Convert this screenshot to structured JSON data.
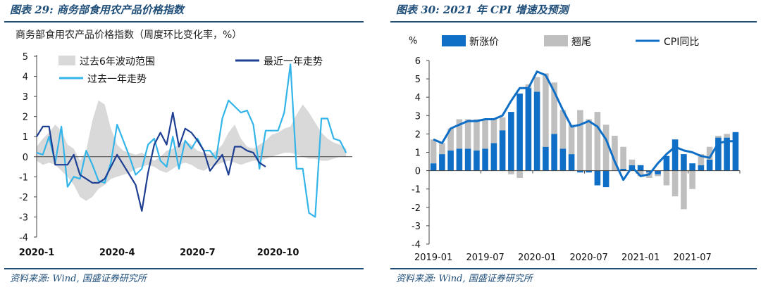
{
  "left": {
    "figure_title": "图表 29:  商务部食用农产品价格指数",
    "source": "资料来源: Wind, 国盛证券研究所",
    "chart_data": {
      "type": "line",
      "subtitle": "商务部食用农产品价格指数（周度环比变化率，%）",
      "ylim": [
        -4,
        5
      ],
      "yticks": [
        "5",
        "4",
        "3",
        "2",
        "1",
        "0",
        "-1",
        "-2",
        "-3",
        "-4"
      ],
      "xticks": [
        "2020-1",
        "2020-4",
        "2020-7",
        "2020-10"
      ],
      "x_unit": "week of year",
      "legend": [
        {
          "key": "band",
          "label": "过去6年波动范围"
        },
        {
          "key": "recent",
          "label": "最近一年走势"
        },
        {
          "key": "past",
          "label": "过去一年走势"
        }
      ],
      "colors": {
        "band": "#d9d9d9",
        "recent": "#1f3f93",
        "past": "#33b5ea"
      },
      "band": {
        "upper": [
          0.5,
          0.9,
          1.2,
          1.6,
          1.3,
          0.6,
          0.4,
          -0.2,
          0.3,
          1.8,
          2.8,
          2.6,
          1.4,
          0.6,
          0.3,
          0.2,
          0.1,
          0.2,
          0.0,
          -0.2,
          0.0,
          0.3,
          0.4,
          0.6,
          0.8,
          0.6,
          0.3,
          0.2,
          0.1,
          0.3,
          0.6,
          1.2,
          1.6,
          0.9,
          0.5,
          0.4,
          0.6,
          0.8,
          1.1,
          1.2,
          1.4,
          1.5,
          2.1,
          2.6,
          2.2,
          1.7,
          1.2,
          0.9,
          0.7,
          0.6,
          0.4
        ],
        "lower": [
          -0.2,
          -0.4,
          -0.3,
          -0.4,
          -0.7,
          -1.0,
          -1.4,
          -2.0,
          -2.2,
          -2.0,
          -1.6,
          -1.4,
          -1.1,
          -1.0,
          -0.9,
          -0.8,
          -0.6,
          -0.5,
          -0.4,
          -0.5,
          -0.7,
          -0.8,
          -0.6,
          -0.4,
          -0.3,
          -0.4,
          -0.6,
          -0.7,
          -0.5,
          -0.4,
          -0.3,
          -0.2,
          -0.3,
          -0.4,
          -0.3,
          -0.2,
          -0.2,
          -0.1,
          0.0,
          0.1,
          0.2,
          0.2,
          0.1,
          0.0,
          -0.1,
          -0.1,
          -0.2,
          -0.2,
          -0.1,
          0.0,
          0.0
        ]
      },
      "series": [
        {
          "key": "past",
          "name": "过去一年走势",
          "x": [
            1,
            2,
            3,
            4,
            5,
            6,
            7,
            8,
            9,
            10,
            11,
            12,
            13,
            14,
            15,
            16,
            17,
            18,
            19,
            20,
            21,
            22,
            23,
            24,
            25,
            26,
            27,
            28,
            29,
            30,
            31,
            32,
            33,
            34,
            35,
            36,
            37,
            38,
            39,
            40,
            41,
            42,
            43,
            44,
            45,
            46,
            47,
            48,
            49,
            50,
            51
          ],
          "values": [
            0.2,
            0.1,
            1.0,
            -0.3,
            1.5,
            -1.5,
            -1.0,
            -1.1,
            0.3,
            -0.4,
            -1.2,
            -1.3,
            -0.3,
            1.6,
            0.8,
            0.0,
            -0.9,
            -0.6,
            0.6,
            0.9,
            -0.2,
            -0.5,
            1.0,
            -0.6,
            0.8,
            0.4,
            0.9,
            0.3,
            0.3,
            -0.1,
            1.9,
            2.8,
            2.5,
            2.2,
            2.3,
            1.6,
            -0.6,
            1.3,
            1.3,
            1.3,
            2.2,
            4.6,
            -0.6,
            -0.6,
            -2.8,
            -3.0,
            1.9,
            1.9,
            0.9,
            0.8,
            0.2
          ]
        },
        {
          "key": "recent",
          "name": "最近一年走势",
          "x": [
            1,
            2,
            3,
            4,
            5,
            6,
            7,
            8,
            9,
            10,
            11,
            12,
            13,
            14,
            15,
            16,
            17,
            18,
            19,
            20,
            21,
            22,
            23,
            24,
            25,
            26,
            27,
            28,
            29,
            30,
            31,
            32,
            33,
            34,
            35,
            36,
            37,
            38
          ],
          "values": [
            1.0,
            1.5,
            1.5,
            -0.4,
            -0.4,
            -0.4,
            0.1,
            -0.9,
            -1.1,
            -1.3,
            -1.3,
            -1.1,
            -0.5,
            0.1,
            -0.4,
            -0.9,
            -1.4,
            -2.7,
            -0.8,
            0.6,
            1.2,
            0.6,
            2.2,
            0.5,
            1.4,
            1.2,
            0.8,
            0.3,
            -0.7,
            -0.3,
            0.1,
            -0.9,
            0.5,
            0.5,
            0.3,
            0.2,
            -0.3,
            -0.5
          ]
        }
      ]
    }
  },
  "right": {
    "figure_title": "图表 30:  2021 年 CPI 增速及预测",
    "source": "资料来源: Wind, 国盛证券研究所",
    "chart_data": {
      "type": "bar",
      "ylabel": "%",
      "ylim": [
        -4,
        6
      ],
      "yticks": [
        "6",
        "5",
        "4",
        "3",
        "2",
        "1",
        "0",
        "-1",
        "-2",
        "-3",
        "-4"
      ],
      "xticks": [
        "2019-01",
        "2019-07",
        "2020-01",
        "2020-07",
        "2021-01",
        "2021-07"
      ],
      "categories": [
        "2019-01",
        "2019-02",
        "2019-03",
        "2019-04",
        "2019-05",
        "2019-06",
        "2019-07",
        "2019-08",
        "2019-09",
        "2019-10",
        "2019-11",
        "2019-12",
        "2020-01",
        "2020-02",
        "2020-03",
        "2020-04",
        "2020-05",
        "2020-06",
        "2020-07",
        "2020-08",
        "2020-09",
        "2020-10",
        "2020-11",
        "2020-12",
        "2021-01",
        "2021-02",
        "2021-03",
        "2021-04",
        "2021-05",
        "2021-06",
        "2021-07",
        "2021-08",
        "2021-09",
        "2021-10",
        "2021-11",
        "2021-12"
      ],
      "legend": [
        {
          "key": "new",
          "label": "新涨价"
        },
        {
          "key": "carry",
          "label": "翘尾"
        },
        {
          "key": "cpi",
          "label": "CPI同比"
        }
      ],
      "colors": {
        "new": "#0f6fc6",
        "carry": "#bfbfbf",
        "cpi": "#0f6fc6"
      },
      "series": [
        {
          "key": "new",
          "name": "新涨价",
          "values": [
            0.4,
            0.9,
            1.1,
            1.2,
            1.2,
            1.1,
            1.2,
            1.5,
            2.2,
            3.2,
            4.2,
            4.5,
            4.3,
            1.3,
            2.0,
            1.2,
            0.9,
            -0.1,
            -0.1,
            -0.8,
            -0.9,
            0.0,
            0.1,
            0.3,
            0.3,
            -0.1,
            -0.2,
            0.8,
            1.7,
            0.9,
            0.4,
            0.3,
            0.6,
            1.8,
            1.8,
            2.1
          ]
        },
        {
          "key": "carry",
          "name": "翘尾",
          "values": [
            1.3,
            0.6,
            1.2,
            1.6,
            1.6,
            1.7,
            1.6,
            1.3,
            0.7,
            -0.2,
            -0.4,
            0.2,
            0.8,
            4.0,
            2.8,
            2.1,
            1.6,
            3.3,
            2.8,
            3.2,
            2.5,
            1.9,
            1.2,
            0.3,
            -0.3,
            -0.3,
            -0.1,
            -0.8,
            -1.4,
            -2.1,
            -1.0,
            0.6,
            0.7,
            0.1,
            0.2,
            0.0
          ]
        },
        {
          "key": "cpi",
          "name": "CPI同比",
          "values": [
            1.7,
            1.5,
            2.3,
            2.5,
            2.7,
            2.7,
            2.8,
            2.8,
            3.0,
            3.8,
            4.5,
            4.5,
            5.4,
            5.2,
            4.3,
            3.3,
            2.4,
            2.5,
            2.7,
            2.4,
            1.7,
            0.5,
            -0.5,
            0.2,
            -0.3,
            -0.2,
            0.4,
            0.9,
            1.3,
            1.1,
            1.0,
            0.8,
            0.7,
            1.5,
            1.6,
            1.6
          ]
        }
      ]
    }
  }
}
